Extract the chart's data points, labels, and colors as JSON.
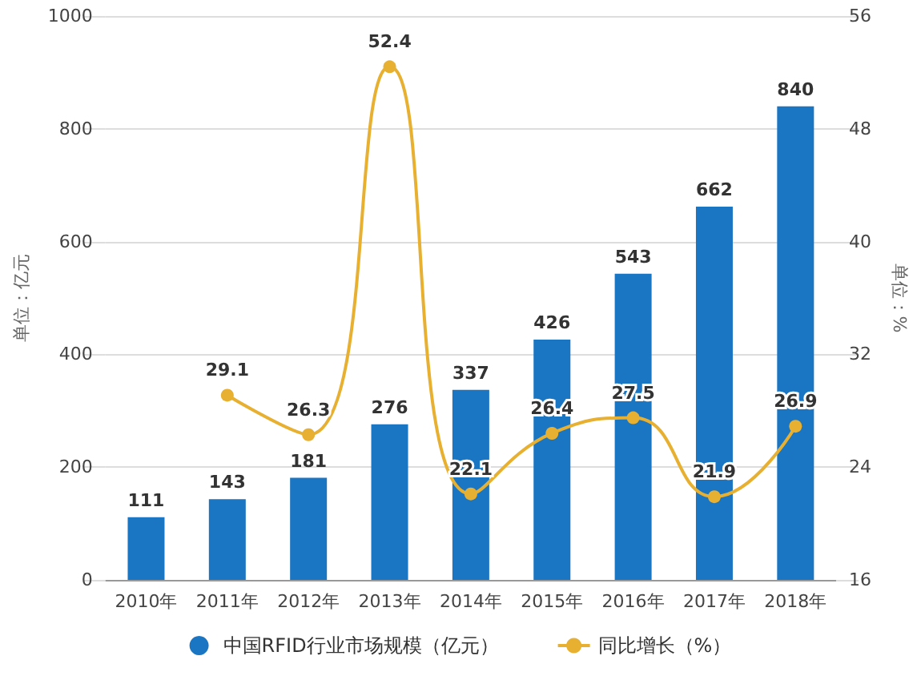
{
  "chart_data": {
    "type": "bar",
    "categories": [
      "2010年",
      "2011年",
      "2012年",
      "2013年",
      "2014年",
      "2015年",
      "2016年",
      "2017年",
      "2018年"
    ],
    "ylabel": "单位：亿元",
    "y2label": "单位：%",
    "series": [
      {
        "name": "中国RFID行业市场规模（亿元）",
        "color": "#1a75c3",
        "values": [
          111,
          143,
          181,
          276,
          337,
          426,
          543,
          662,
          840
        ]
      },
      {
        "name": "同比增长（%）",
        "type": "line",
        "axis": "y2",
        "color": "#e8b030",
        "values": [
          null,
          29.1,
          26.3,
          52.4,
          22.1,
          26.4,
          27.5,
          21.9,
          26.9
        ]
      }
    ],
    "ylim": [
      0,
      1000
    ],
    "yticks": [
      0,
      200,
      400,
      600,
      800,
      1000
    ],
    "y2lim": [
      16,
      56
    ],
    "y2ticks": [
      16,
      24,
      32,
      40,
      48,
      56
    ],
    "data_labels": true,
    "grid": "y",
    "legend": "bottom",
    "marker": "circle",
    "line_style": "solid"
  }
}
